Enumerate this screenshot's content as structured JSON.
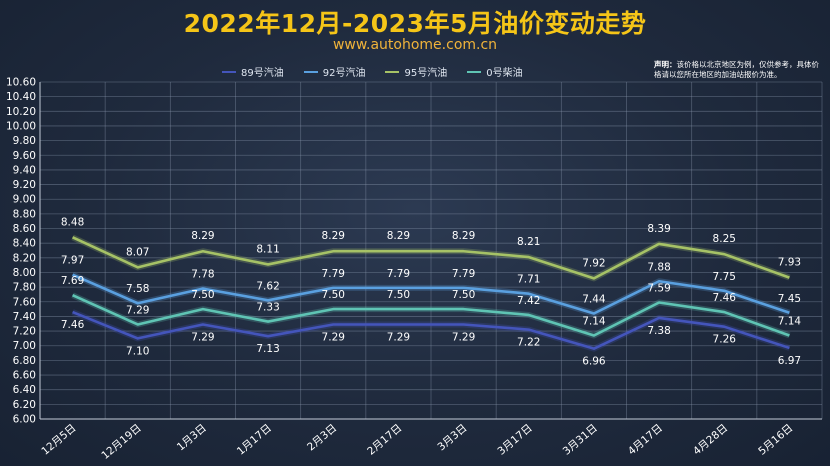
{
  "header": {
    "title": "2022年12月-2023年5月油价变动走势",
    "subtitle": "www.autohome.com.cn",
    "disclaimer_label": "声明：",
    "disclaimer_text": "该价格以北京地区为例，仅供参考，具体价格请以您所在地区的加油站报价为准。"
  },
  "chart_data": {
    "type": "line",
    "title": "2022年12月-2023年5月油价变动走势",
    "categories": [
      "12月5日",
      "12月19日",
      "1月3日",
      "1月17日",
      "2月3日",
      "2月17日",
      "3月3日",
      "3月17日",
      "3月31日",
      "4月17日",
      "4月28日",
      "5月16日"
    ],
    "ylim": [
      6.0,
      10.6
    ],
    "ystep": 0.2,
    "yticks": [
      "6.00",
      "6.20",
      "6.40",
      "6.60",
      "6.80",
      "7.00",
      "7.20",
      "7.40",
      "7.60",
      "7.80",
      "8.00",
      "8.20",
      "8.40",
      "8.60",
      "8.80",
      "9.00",
      "9.20",
      "9.40",
      "9.60",
      "9.80",
      "10.00",
      "10.20",
      "10.40",
      "10.60"
    ],
    "grid": true,
    "legend": "top",
    "series": [
      {
        "name": "89号汽油",
        "color": "#4455bb",
        "values": [
          7.46,
          7.1,
          7.29,
          7.13,
          7.29,
          7.29,
          7.29,
          7.22,
          6.96,
          7.38,
          7.26,
          6.97
        ],
        "labels": [
          "7.46",
          "7.10",
          "7.29",
          "7.13",
          "7.29",
          "7.29",
          "7.29",
          "7.22",
          "6.96",
          "7.38",
          "7.26",
          "6.97"
        ]
      },
      {
        "name": "92号汽油",
        "color": "#5aa0e0",
        "values": [
          7.97,
          7.58,
          7.78,
          7.62,
          7.79,
          7.79,
          7.79,
          7.71,
          7.44,
          7.88,
          7.75,
          7.45
        ],
        "labels": [
          "7.97",
          "7.58",
          "7.78",
          "7.62",
          "7.79",
          "7.79",
          "7.79",
          "7.71",
          "7.44",
          "7.88",
          "7.75",
          "7.45"
        ]
      },
      {
        "name": "95号汽油",
        "color": "#a6c266",
        "values": [
          8.48,
          8.07,
          8.29,
          8.11,
          8.29,
          8.29,
          8.29,
          8.21,
          7.92,
          8.39,
          8.25,
          7.93
        ],
        "labels": [
          "8.48",
          "8.07",
          "8.29",
          "8.11",
          "8.29",
          "8.29",
          "8.29",
          "8.21",
          "7.92",
          "8.39",
          "8.25",
          "7.93"
        ]
      },
      {
        "name": "0号柴油",
        "color": "#5fc4b4",
        "values": [
          7.69,
          7.29,
          7.5,
          7.33,
          7.5,
          7.5,
          7.5,
          7.42,
          7.14,
          7.59,
          7.46,
          7.14
        ],
        "labels": [
          "7.69",
          "7.29",
          "7.50",
          "7.33",
          "7.50",
          "7.50",
          "7.50",
          "7.42",
          "7.14",
          "7.59",
          "7.46",
          "7.14"
        ]
      }
    ]
  }
}
